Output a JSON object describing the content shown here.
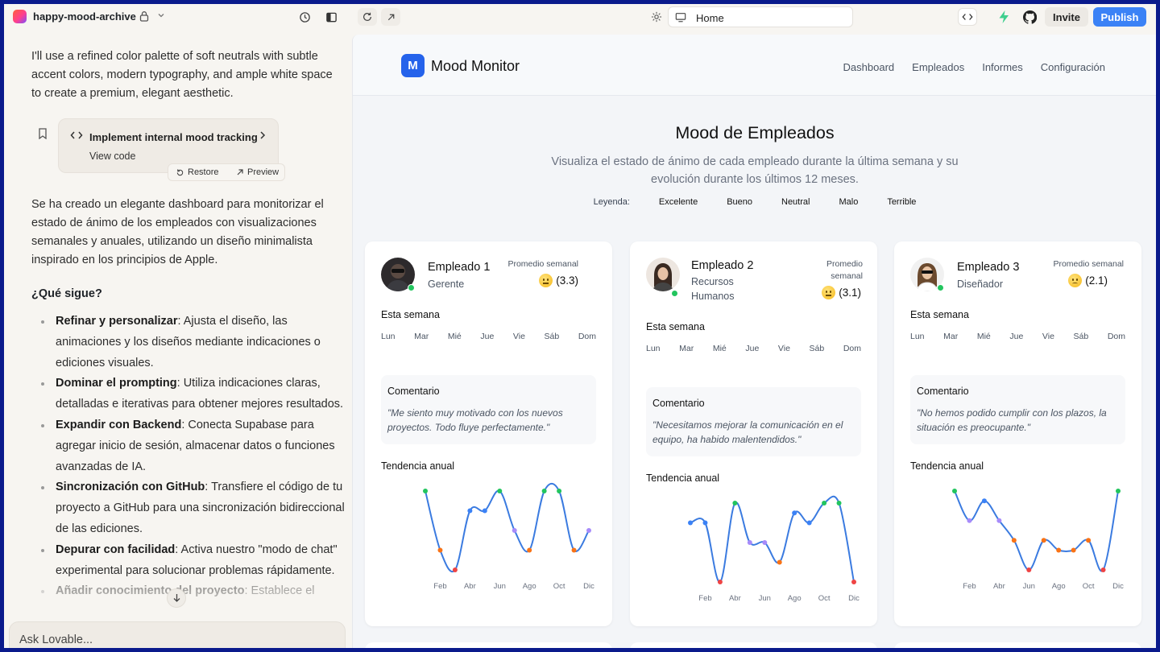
{
  "topbar": {
    "project_name": "happy-mood-archive",
    "url": "Home",
    "invite_label": "Invite",
    "publish_label": "Publish"
  },
  "chat": {
    "intro": "I'll use a refined color palette of soft neutrals with subtle accent colors, modern typography, and ample white space to create a premium, elegant aesthetic.",
    "code_card": {
      "title": "Implement internal mood tracking",
      "subtitle": "View code",
      "restore_label": "Restore",
      "preview_label": "Preview"
    },
    "summary": "Se ha creado un elegante dashboard para monitorizar el estado de ánimo de los empleados con visualizaciones semanales y anuales, utilizando un diseño minimalista inspirado en los principios de Apple.",
    "next_title": "¿Qué sigue?",
    "next_items": [
      {
        "bold": "Refinar y personalizar",
        "text": ": Ajusta el diseño, las animaciones y los diseños mediante indicaciones o ediciones visuales."
      },
      {
        "bold": "Dominar el prompting",
        "text": ": Utiliza indicaciones claras, detalladas e iterativas para obtener mejores resultados."
      },
      {
        "bold": "Expandir con Backend",
        "text": ": Conecta Supabase para agregar inicio de sesión, almacenar datos o funciones avanzadas de IA."
      },
      {
        "bold": "Sincronización con GitHub",
        "text": ": Transfiere el código de tu proyecto a GitHub para una sincronización bidireccional de las ediciones."
      },
      {
        "bold": "Depurar con facilidad",
        "text": ": Activa nuestro \"modo de chat\" experimental para solucionar problemas rápidamente."
      },
      {
        "bold": "Añadir conocimiento del proyecto",
        "text": ": Establece el"
      }
    ],
    "input_placeholder": "Ask Lovable..."
  },
  "app": {
    "logo_letter": "M",
    "name": "Mood Monitor",
    "nav": [
      "Dashboard",
      "Empleados",
      "Informes",
      "Configuración"
    ],
    "title": "Mood de Empleados",
    "subtitle": "Visualiza el estado de ánimo de cada empleado durante la última semana y su evolución durante los últimos 12 meses.",
    "legend_label": "Leyenda:",
    "legend": [
      "Excelente",
      "Bueno",
      "Neutral",
      "Malo",
      "Terrible"
    ],
    "legend_colors": {
      "Excelente": "#22c55e",
      "Bueno": "#3b82f6",
      "Neutral": "#a78bfa",
      "Malo": "#f97316",
      "Terrible": "#ef4444"
    },
    "week_title": "Esta semana",
    "days": [
      "Lun",
      "Mar",
      "Mié",
      "Jue",
      "Vie",
      "Sáb",
      "Dom"
    ],
    "comment_title": "Comentario",
    "trend_title": "Tendencia anual",
    "month_ticks": [
      "Feb",
      "Abr",
      "Jun",
      "Ago",
      "Oct",
      "Dic"
    ],
    "employees": [
      {
        "name": "Empleado 1",
        "role": "Gerente",
        "avg_label": "Promedio semanal",
        "avg_value": "(3.3)",
        "comment": "\"Me siento muy motivado con los nuevos proyectos. Todo fluye perfectamente.\"",
        "trend": [
          5,
          2,
          1,
          4,
          4,
          5,
          3,
          2,
          5,
          5,
          2,
          3
        ]
      },
      {
        "name": "Empleado 2",
        "role": "Recursos Humanos",
        "avg_label": "Promedio semanal",
        "avg_value": "(3.1)",
        "comment": "\"Necesitamos mejorar la comunicación en el equipo, ha habido malentendidos.\"",
        "trend": [
          4,
          4,
          1,
          5,
          3,
          3,
          2,
          4.5,
          4,
          5,
          5,
          1
        ]
      },
      {
        "name": "Empleado 3",
        "role": "Diseñador",
        "avg_label": "Promedio semanal",
        "avg_value": "(2.1)",
        "comment": "\"No hemos podido cumplir con los plazos, la situación es preocupante.\"",
        "trend": [
          5,
          3.5,
          4.5,
          3.5,
          2.5,
          1,
          2.5,
          2,
          2,
          2.5,
          1,
          5
        ]
      }
    ]
  }
}
